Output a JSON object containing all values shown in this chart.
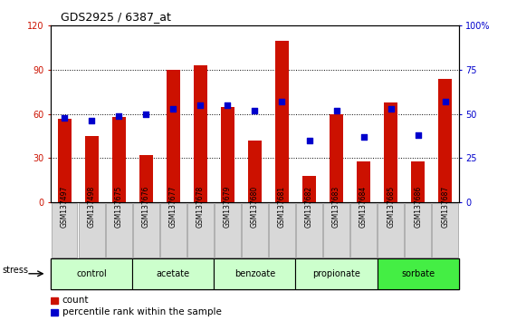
{
  "title": "GDS2925 / 6387_at",
  "samples": [
    "GSM137497",
    "GSM137498",
    "GSM137675",
    "GSM137676",
    "GSM137677",
    "GSM137678",
    "GSM137679",
    "GSM137680",
    "GSM137681",
    "GSM137682",
    "GSM137683",
    "GSM137684",
    "GSM137685",
    "GSM137686",
    "GSM137687"
  ],
  "counts": [
    57,
    45,
    58,
    32,
    90,
    93,
    65,
    42,
    110,
    18,
    60,
    28,
    68,
    28,
    84
  ],
  "percentiles": [
    48,
    46,
    49,
    50,
    53,
    55,
    55,
    52,
    57,
    35,
    52,
    37,
    53,
    38,
    57
  ],
  "groups": [
    {
      "label": "control",
      "start": 0,
      "end": 3,
      "color": "#ccffcc"
    },
    {
      "label": "acetate",
      "start": 3,
      "end": 6,
      "color": "#ccffcc"
    },
    {
      "label": "benzoate",
      "start": 6,
      "end": 9,
      "color": "#ccffcc"
    },
    {
      "label": "propionate",
      "start": 9,
      "end": 12,
      "color": "#ccffcc"
    },
    {
      "label": "sorbate",
      "start": 12,
      "end": 15,
      "color": "#44ee44"
    }
  ],
  "bar_color": "#cc1100",
  "dot_color": "#0000cc",
  "ylim_left": [
    0,
    120
  ],
  "ylim_right": [
    0,
    100
  ],
  "yticks_left": [
    0,
    30,
    60,
    90,
    120
  ],
  "ytick_labels_left": [
    "0",
    "30",
    "60",
    "90",
    "120"
  ],
  "yticks_right_vals": [
    0,
    25,
    50,
    75,
    100
  ],
  "ytick_labels_right": [
    "0",
    "25",
    "50",
    "75",
    "100%"
  ],
  "stress_label": "stress",
  "legend_count": "count",
  "legend_pct": "percentile rank within the sample",
  "bar_width": 0.5,
  "sample_box_color": "#d8d8d8",
  "sample_box_edge": "#999999",
  "fig_width": 5.6,
  "fig_height": 3.54,
  "dpi": 100
}
